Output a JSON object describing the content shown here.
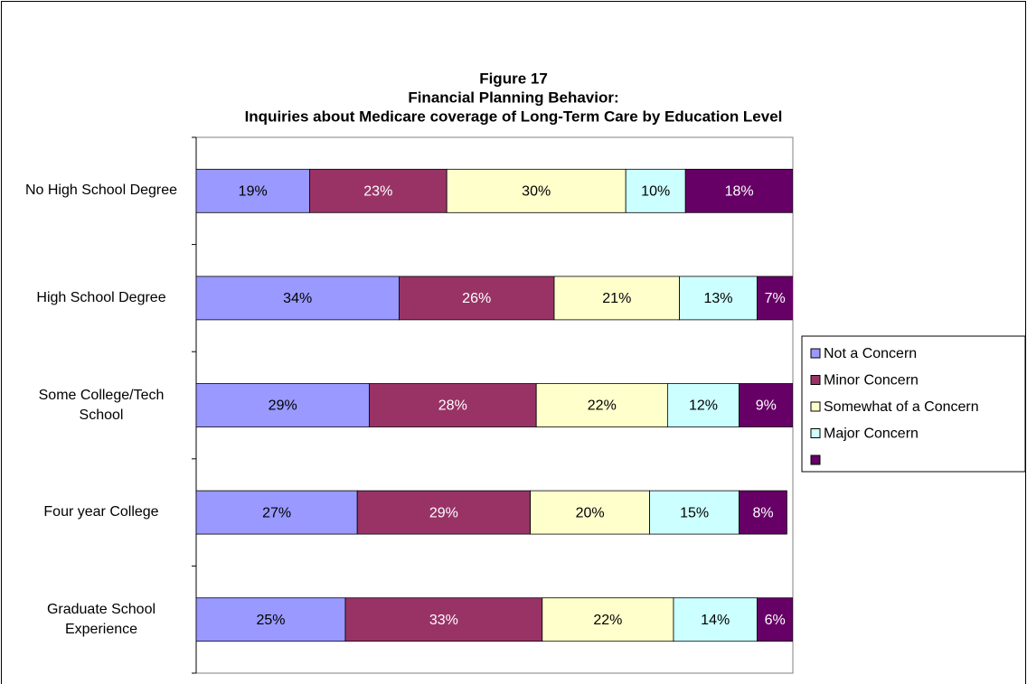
{
  "chart_data": {
    "type": "stacked-bar-horizontal",
    "title": [
      "Figure 17",
      "Financial Planning Behavior:",
      "Inquiries about Medicare coverage of Long-Term Care by Education Level"
    ],
    "categories": [
      "No High School Degree",
      "High School Degree",
      "Some College/Tech School",
      "Four year College",
      "Graduate School Experience"
    ],
    "xlim": [
      0,
      100
    ],
    "series": [
      {
        "name": "Not a Concern",
        "color": "#9999ff",
        "label_color": "#000000",
        "values": [
          19,
          34,
          29,
          27,
          25
        ],
        "value_labels": [
          "19%",
          "34%",
          "29%",
          "27%",
          "25%"
        ]
      },
      {
        "name": "Minor Concern",
        "color": "#993366",
        "label_color": "#ffffff",
        "values": [
          23,
          26,
          28,
          29,
          33
        ],
        "value_labels": [
          "23%",
          "26%",
          "28%",
          "29%",
          "33%"
        ]
      },
      {
        "name": "Somewhat of a Concern",
        "color": "#ffffcc",
        "label_color": "#000000",
        "values": [
          30,
          21,
          22,
          20,
          22
        ],
        "value_labels": [
          "30%",
          "21%",
          "22%",
          "20%",
          "22%"
        ]
      },
      {
        "name": "Major Concern",
        "color": "#ccffff",
        "label_color": "#000000",
        "values": [
          10,
          13,
          12,
          15,
          14
        ],
        "value_labels": [
          "10%",
          "13%",
          "12%",
          "15%",
          "14%"
        ]
      },
      {
        "color": "#660066",
        "label_color": "#ffffff",
        "values": [
          18,
          7,
          9,
          8,
          6
        ],
        "value_labels": [
          "18%",
          "7%",
          "9%",
          "8%",
          "6%"
        ]
      }
    ],
    "legend": "right"
  }
}
